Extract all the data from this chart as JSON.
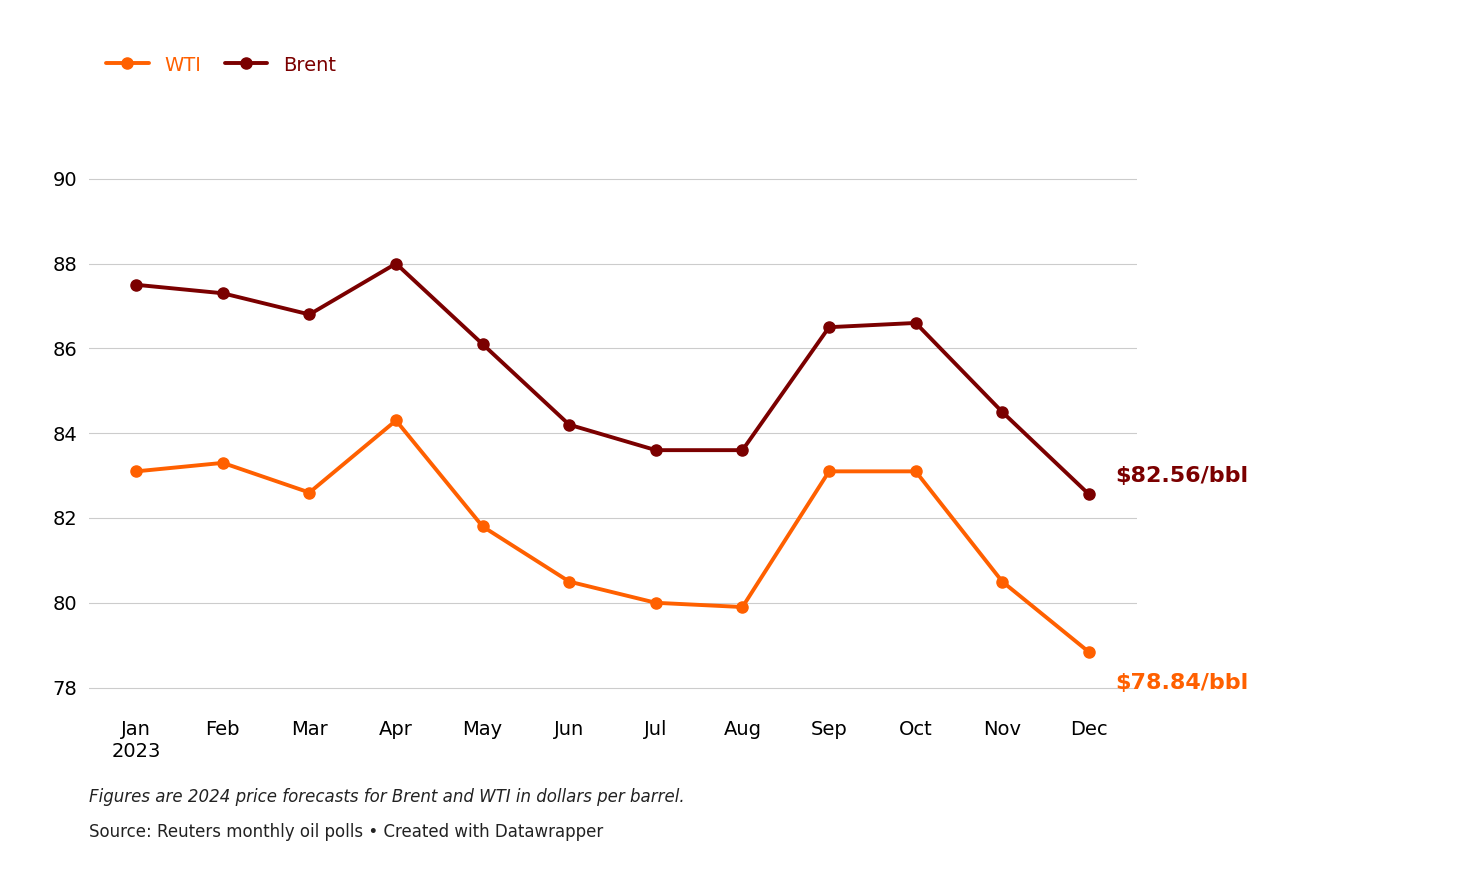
{
  "months": [
    "Jan\n2023",
    "Feb",
    "Mar",
    "Apr",
    "May",
    "Jun",
    "Jul",
    "Aug",
    "Sep",
    "Oct",
    "Nov",
    "Dec"
  ],
  "wti": [
    83.1,
    83.3,
    82.6,
    84.3,
    81.8,
    80.5,
    80.0,
    79.9,
    83.1,
    83.1,
    80.5,
    78.84
  ],
  "brent": [
    87.5,
    87.3,
    86.8,
    88.0,
    86.1,
    84.2,
    83.6,
    83.6,
    86.5,
    86.6,
    84.5,
    82.56
  ],
  "wti_color": "#FF6000",
  "brent_color": "#7B0000",
  "wti_label": "WTI",
  "brent_label": "Brent",
  "wti_end_label": "$78.84/bbl",
  "brent_end_label": "$82.56/bbl",
  "wti_end_color": "#FF6000",
  "brent_end_color": "#7B0000",
  "ylim": [
    77.5,
    91.5
  ],
  "yticks": [
    78,
    80,
    82,
    84,
    86,
    88,
    90
  ],
  "grid_color": "#cccccc",
  "background_color": "#ffffff",
  "footnote_italic": "Figures are 2024 price forecasts for Brent and WTI in dollars per barrel.",
  "footnote_source": "Source: Reuters monthly oil polls • Created with Datawrapper",
  "marker_size": 8,
  "line_width": 2.8
}
